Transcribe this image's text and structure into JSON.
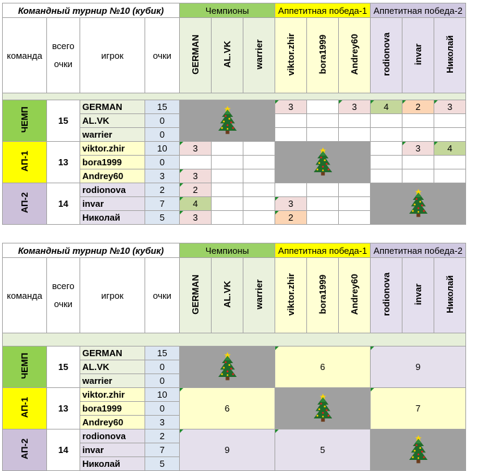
{
  "title": "Командный турнир №10 (кубик)",
  "groups": [
    "Чемпионы",
    "Аппетитная победа-1",
    "Аппетитная победа-2"
  ],
  "headers": {
    "team": "команда",
    "total": "всего очки",
    "player": "игрок",
    "points": "очки"
  },
  "columns": [
    "GERMAN",
    "AL.VK",
    "warrier",
    "viktor.zhir",
    "bora1999",
    "Andrey60",
    "rodionova",
    "invar",
    "Николай"
  ],
  "teams": [
    {
      "label": "ЧЕМП",
      "total": "15",
      "players": [
        {
          "name": "GERMAN",
          "points": "15"
        },
        {
          "name": "AL.VK",
          "points": "0"
        },
        {
          "name": "warrier",
          "points": "0"
        }
      ]
    },
    {
      "label": "АП-1",
      "total": "13",
      "players": [
        {
          "name": "viktor.zhir",
          "points": "10"
        },
        {
          "name": "bora1999",
          "points": "0"
        },
        {
          "name": "Andrey60",
          "points": "3"
        }
      ]
    },
    {
      "label": "АП-2",
      "total": "14",
      "players": [
        {
          "name": "rodionova",
          "points": "2"
        },
        {
          "name": "invar",
          "points": "7"
        },
        {
          "name": "Николай",
          "points": "5"
        }
      ]
    }
  ],
  "grid1": {
    "german_viktor": "3",
    "german_andrey": "3",
    "german_rodionova": "4",
    "german_invar": "2",
    "german_nikolay": "3",
    "viktor_german": "3",
    "viktor_invar": "3",
    "viktor_nikolay": "4",
    "andrey_german": "3",
    "rodionova_german": "2",
    "invar_german": "4",
    "invar_viktor": "3",
    "nikolay_german": "3",
    "nikolay_viktor": "2"
  },
  "grid2": {
    "ch_ap1": "6",
    "ch_ap2": "9",
    "ap1_ch": "6",
    "ap1_ap2": "7",
    "ap2_ch": "9",
    "ap2_ap1": "5"
  },
  "colors": {
    "champions": "#9bd167",
    "ap1": "#ffff00",
    "ap2": "#d0c9e1",
    "gray": "#a0a0a0"
  },
  "icons": {
    "tree": "christmas-tree-icon"
  }
}
